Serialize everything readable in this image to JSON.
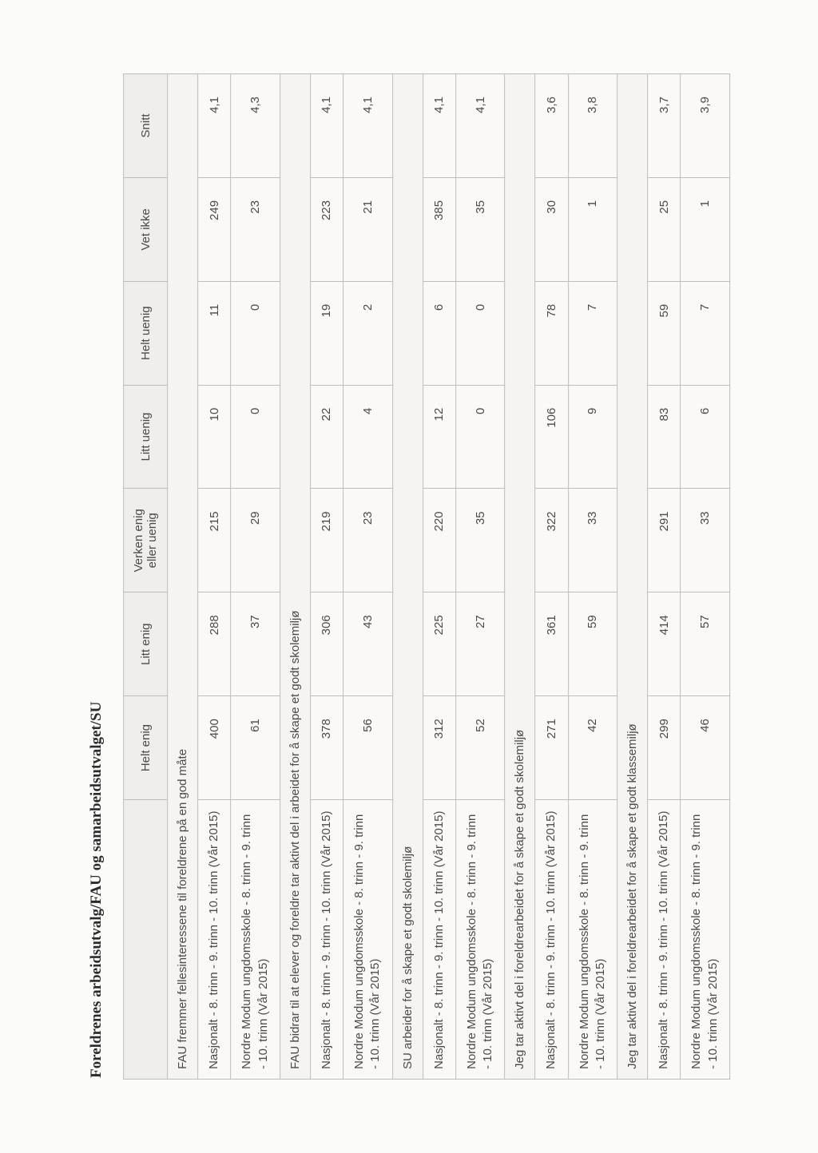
{
  "title": "Foreldrenes arbeidsutvalg/FAU og samarbeidsutvalget/SU",
  "columns": [
    "Helt enig",
    "Litt enig",
    "Verken enig eller uenig",
    "Litt uenig",
    "Helt uenig",
    "Vet ikke",
    "Snitt"
  ],
  "row_label_nasjonalt": "Nasjonalt - 8. trinn - 9. trinn - 10. trinn (Vår 2015)",
  "row_label_nordre": "Nordre Modum ungdomsskole - 8. trinn - 9. trinn - 10. trinn (Vår 2015)",
  "sections": [
    {
      "heading": "FAU fremmer fellesinteressene til foreldrene på en god måte",
      "rows": [
        {
          "label_key": "row_label_nasjonalt",
          "values": [
            "400",
            "288",
            "215",
            "10",
            "11",
            "249",
            "4,1"
          ]
        },
        {
          "label_key": "row_label_nordre",
          "values": [
            "61",
            "37",
            "29",
            "0",
            "0",
            "23",
            "4,3"
          ]
        }
      ]
    },
    {
      "heading": "FAU bidrar til at elever og foreldre tar aktivt del i arbeidet for å skape et godt skolemiljø",
      "rows": [
        {
          "label_key": "row_label_nasjonalt",
          "values": [
            "378",
            "306",
            "219",
            "22",
            "19",
            "223",
            "4,1"
          ]
        },
        {
          "label_key": "row_label_nordre",
          "values": [
            "56",
            "43",
            "23",
            "4",
            "2",
            "21",
            "4,1"
          ]
        }
      ]
    },
    {
      "heading": "SU arbeider for å skape et godt skolemiljø",
      "rows": [
        {
          "label_key": "row_label_nasjonalt",
          "values": [
            "312",
            "225",
            "220",
            "12",
            "6",
            "385",
            "4,1"
          ]
        },
        {
          "label_key": "row_label_nordre",
          "values": [
            "52",
            "27",
            "35",
            "0",
            "0",
            "35",
            "4,1"
          ]
        }
      ]
    },
    {
      "heading": "Jeg tar aktivt del i foreldrearbeidet for å skape et godt skolemiljø",
      "rows": [
        {
          "label_key": "row_label_nasjonalt",
          "values": [
            "271",
            "361",
            "322",
            "106",
            "78",
            "30",
            "3,6"
          ]
        },
        {
          "label_key": "row_label_nordre",
          "values": [
            "42",
            "59",
            "33",
            "9",
            "7",
            "1",
            "3,8"
          ]
        }
      ]
    },
    {
      "heading": "Jeg tar aktivt del i foreldrearbeidet for å skape et godt klassemiljø",
      "rows": [
        {
          "label_key": "row_label_nasjonalt",
          "values": [
            "299",
            "414",
            "291",
            "83",
            "59",
            "25",
            "3,7"
          ]
        },
        {
          "label_key": "row_label_nordre",
          "values": [
            "46",
            "57",
            "33",
            "6",
            "7",
            "1",
            "3,9"
          ]
        }
      ]
    }
  ],
  "colors": {
    "page_bg": "#fbfbfa",
    "header_bg": "#efeeec",
    "cell_bg": "#faf9f7",
    "border": "#bdbdbd",
    "text": "#4a4a4a"
  }
}
